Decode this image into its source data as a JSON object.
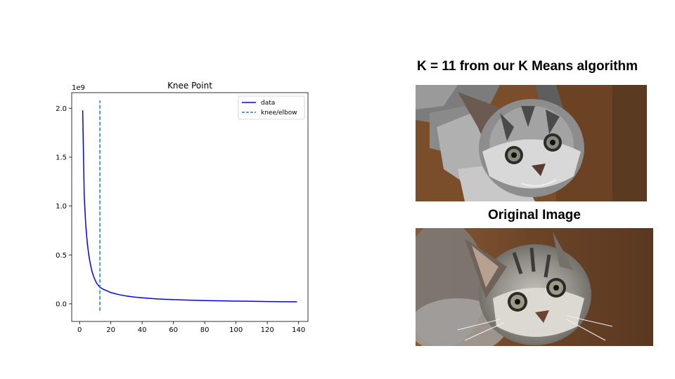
{
  "chart_data": {
    "type": "line",
    "title": "Knee Point",
    "xlabel": "",
    "ylabel": "",
    "y_offset_label": "1e9",
    "xlim": [
      -5,
      146
    ],
    "ylim": [
      -0.18,
      2.16
    ],
    "x_ticks": [
      0,
      20,
      40,
      60,
      80,
      100,
      120,
      140
    ],
    "x_tick_labels": [
      "0",
      "20",
      "40",
      "60",
      "80",
      "100",
      "120",
      "140"
    ],
    "y_ticks": [
      0.0,
      0.5,
      1.0,
      1.5,
      2.0
    ],
    "y_tick_labels": [
      "0.0",
      "0.5",
      "1.0",
      "1.5",
      "2.0"
    ],
    "grid": false,
    "legend_placement": "top-right",
    "series": [
      {
        "name": "data",
        "style": "solid",
        "color": "#0000ff",
        "x": [
          2,
          3,
          4,
          5,
          6,
          7,
          8,
          9,
          10,
          11,
          12,
          13,
          15,
          18,
          20,
          25,
          30,
          35,
          40,
          50,
          60,
          70,
          80,
          90,
          100,
          110,
          120,
          130,
          139
        ],
        "y": [
          1.98,
          1.1,
          0.8,
          0.61,
          0.49,
          0.4,
          0.33,
          0.28,
          0.24,
          0.21,
          0.19,
          0.17,
          0.15,
          0.13,
          0.115,
          0.095,
          0.08,
          0.07,
          0.062,
          0.05,
          0.043,
          0.038,
          0.034,
          0.031,
          0.028,
          0.026,
          0.024,
          0.022,
          0.021
        ]
      },
      {
        "name": "knee/elbow",
        "style": "dashed",
        "color": "#1f77b4",
        "x": [
          13,
          13
        ],
        "y": [
          -0.07,
          2.08
        ]
      }
    ]
  },
  "panels": {
    "kmeans_title": "K = 11 from our K Means algorithm",
    "original_title": "Original Image"
  },
  "colors": {
    "background": "#ffffff",
    "data_line": "#0000ff",
    "knee_line": "#1f77b4"
  }
}
